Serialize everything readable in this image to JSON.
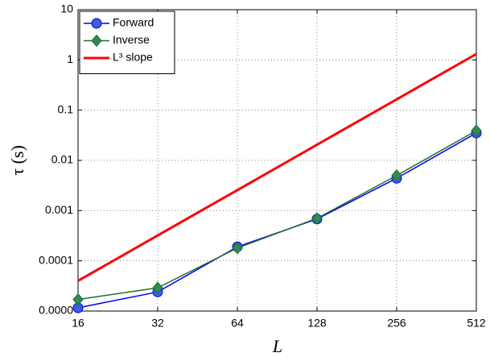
{
  "chart_data": {
    "type": "line",
    "x_label": "L",
    "y_label": "τ (s)",
    "x": [
      16,
      32,
      64,
      128,
      256,
      512
    ],
    "series": [
      {
        "name": "Forward",
        "color": "#0000ff",
        "marker_color": "#3f5fd6",
        "marker": "circle",
        "values": [
          1.16e-05,
          2.4e-05,
          0.00019,
          0.00068,
          0.0044,
          0.035
        ]
      },
      {
        "name": "Inverse",
        "color": "#1f6e2e",
        "marker_color": "#2e8b57",
        "marker": "diamond",
        "values": [
          1.7e-05,
          2.9e-05,
          0.00018,
          0.0007,
          0.005,
          0.039
        ]
      },
      {
        "name": "L³ slope",
        "color": "#ff0000",
        "marker": "none",
        "values": [
          4e-05,
          0.00032,
          0.00256,
          0.02048,
          0.16384,
          1.31072
        ]
      }
    ],
    "xlim": [
      16,
      512
    ],
    "ylim": [
      1e-05,
      10
    ],
    "xticks": [
      16,
      32,
      64,
      128,
      256,
      512
    ],
    "yticks": [
      {
        "value": 1e-05,
        "label": "0.0000"
      },
      0.0001,
      0.001,
      0.01,
      0.1,
      1,
      10
    ],
    "xlog": true,
    "ylog": true,
    "grid": true,
    "legend": "upper left"
  }
}
